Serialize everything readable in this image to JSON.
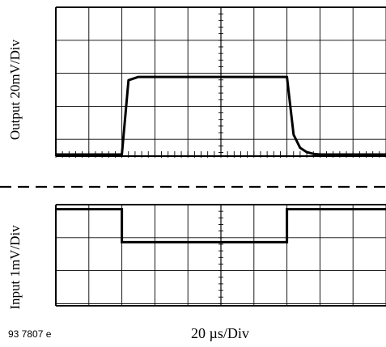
{
  "figure_id": "93 7807 e",
  "chart_data": {
    "type": "line",
    "xlabel": "20 µs/Div",
    "x_divisions": 10,
    "panels": [
      {
        "name": "output",
        "ylabel": "Output 20mV/Div",
        "y_divisions": 6,
        "baseline_div": 0,
        "x": [
          0,
          2.0,
          2.2,
          2.5,
          7.0,
          7.2,
          7.4,
          7.6,
          7.8,
          8.0,
          10
        ],
        "y": [
          0,
          0,
          2.25,
          2.35,
          2.35,
          0.6,
          0.2,
          0.07,
          0.02,
          0,
          0
        ]
      },
      {
        "name": "input",
        "ylabel": "Input 1mV/Div",
        "y_divisions": 4,
        "baseline_div": 3,
        "x": [
          0,
          2.0,
          2.0,
          7.0,
          7.0,
          10
        ],
        "y": [
          3,
          3,
          2,
          2,
          3,
          3
        ]
      }
    ]
  }
}
